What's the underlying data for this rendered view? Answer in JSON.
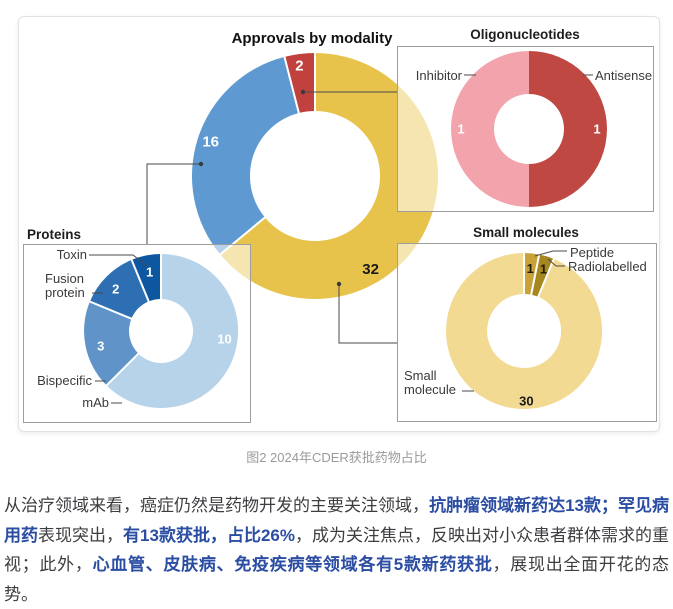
{
  "figure": {
    "main_title": "Approvals by modality",
    "caption": "图2 2024年CDER获批药物占比"
  },
  "colors": {
    "main_yellow": "#e8c34b",
    "main_blue": "#5e9ad1",
    "main_red": "#c0413d",
    "oligo_pink": "#f2a3ac",
    "oligo_dark_red": "#bf4843",
    "mab_light_blue": "#b7d3ea",
    "bispecific_blue": "#6094c8",
    "fusion_blue": "#2e6fb4",
    "toxin_navy": "#0d57a0",
    "small_molecule_light": "#f2da92",
    "peptide_gold": "#c8a139",
    "radiolabelled_olive": "#a5861f",
    "em_text": "#2b4da2",
    "body_text": "#3e3e42",
    "caption_text": "#9a9a9a",
    "panel_border": "#9e9e9e",
    "connector": "#4a4a4a"
  },
  "chart_data": [
    {
      "id": "approvals-by-modality",
      "type": "pie",
      "title": "Approvals by modality",
      "total": 50,
      "segments": [
        {
          "name": "Small molecules",
          "value": 32,
          "color": "#e8c34b",
          "value_label": "32",
          "value_label_color": "#1a1a1a"
        },
        {
          "name": "Proteins",
          "value": 16,
          "color": "#5e9ad1",
          "value_label": "16",
          "value_label_color": "#ffffff"
        },
        {
          "name": "Oligonucleotides",
          "value": 2,
          "color": "#c0413d",
          "value_label": "2",
          "value_label_color": "#ffffff"
        }
      ]
    },
    {
      "id": "oligonucleotides",
      "type": "pie",
      "title": "Oligonucleotides",
      "total": 2,
      "segments": [
        {
          "name": "Antisense",
          "value": 1,
          "color": "#bf4843",
          "value_label": "1",
          "value_label_color": "#ffffff"
        },
        {
          "name": "Inhibitor",
          "value": 1,
          "color": "#f2a3ac",
          "value_label": "1",
          "value_label_color": "#ffffff"
        }
      ]
    },
    {
      "id": "proteins",
      "type": "pie",
      "title": "Proteins",
      "total": 16,
      "segments": [
        {
          "name": "mAb",
          "value": 10,
          "color": "#b7d3ea",
          "value_label": "10",
          "value_label_color": "#ffffff"
        },
        {
          "name": "Bispecific",
          "value": 3,
          "color": "#6094c8",
          "value_label": "3",
          "value_label_color": "#ffffff"
        },
        {
          "name": "Fusion protein",
          "value": 2,
          "color": "#2e6fb4",
          "value_label": "2",
          "value_label_color": "#ffffff"
        },
        {
          "name": "Toxin",
          "value": 1,
          "color": "#0d57a0",
          "value_label": "1",
          "value_label_color": "#ffffff"
        }
      ]
    },
    {
      "id": "small-molecules",
      "type": "pie",
      "title": "Small molecules",
      "total": 32,
      "segments": [
        {
          "name": "Peptide",
          "value": 1,
          "color": "#c8a139",
          "value_label": "1",
          "value_label_color": "#221c07"
        },
        {
          "name": "Radiolabelled",
          "value": 1,
          "color": "#a5861f",
          "value_label": "1",
          "value_label_color": "#221c07"
        },
        {
          "name": "Small molecule",
          "value": 30,
          "color": "#f2da92",
          "value_label": "30",
          "value_label_color": "#1a1a1a"
        }
      ]
    }
  ],
  "paragraph": {
    "runs": [
      {
        "style": "normal",
        "text": "从治疗领域来看，癌症仍然是药物开发的主要关注领域，"
      },
      {
        "style": "em",
        "text": "抗肿瘤领域新药达13款；罕见病用药"
      },
      {
        "style": "normal",
        "text": "表现突出，"
      },
      {
        "style": "em",
        "text": "有13款获批，占比26%"
      },
      {
        "style": "normal",
        "text": "，成为关注焦点，反映出对小众患者群体需求的重视；此外，"
      },
      {
        "style": "em",
        "text": "心血管、皮肤病、免疫疾病等领域各有5款新药获批"
      },
      {
        "style": "normal",
        "text": "，展现出全面开花的态势。"
      }
    ]
  }
}
